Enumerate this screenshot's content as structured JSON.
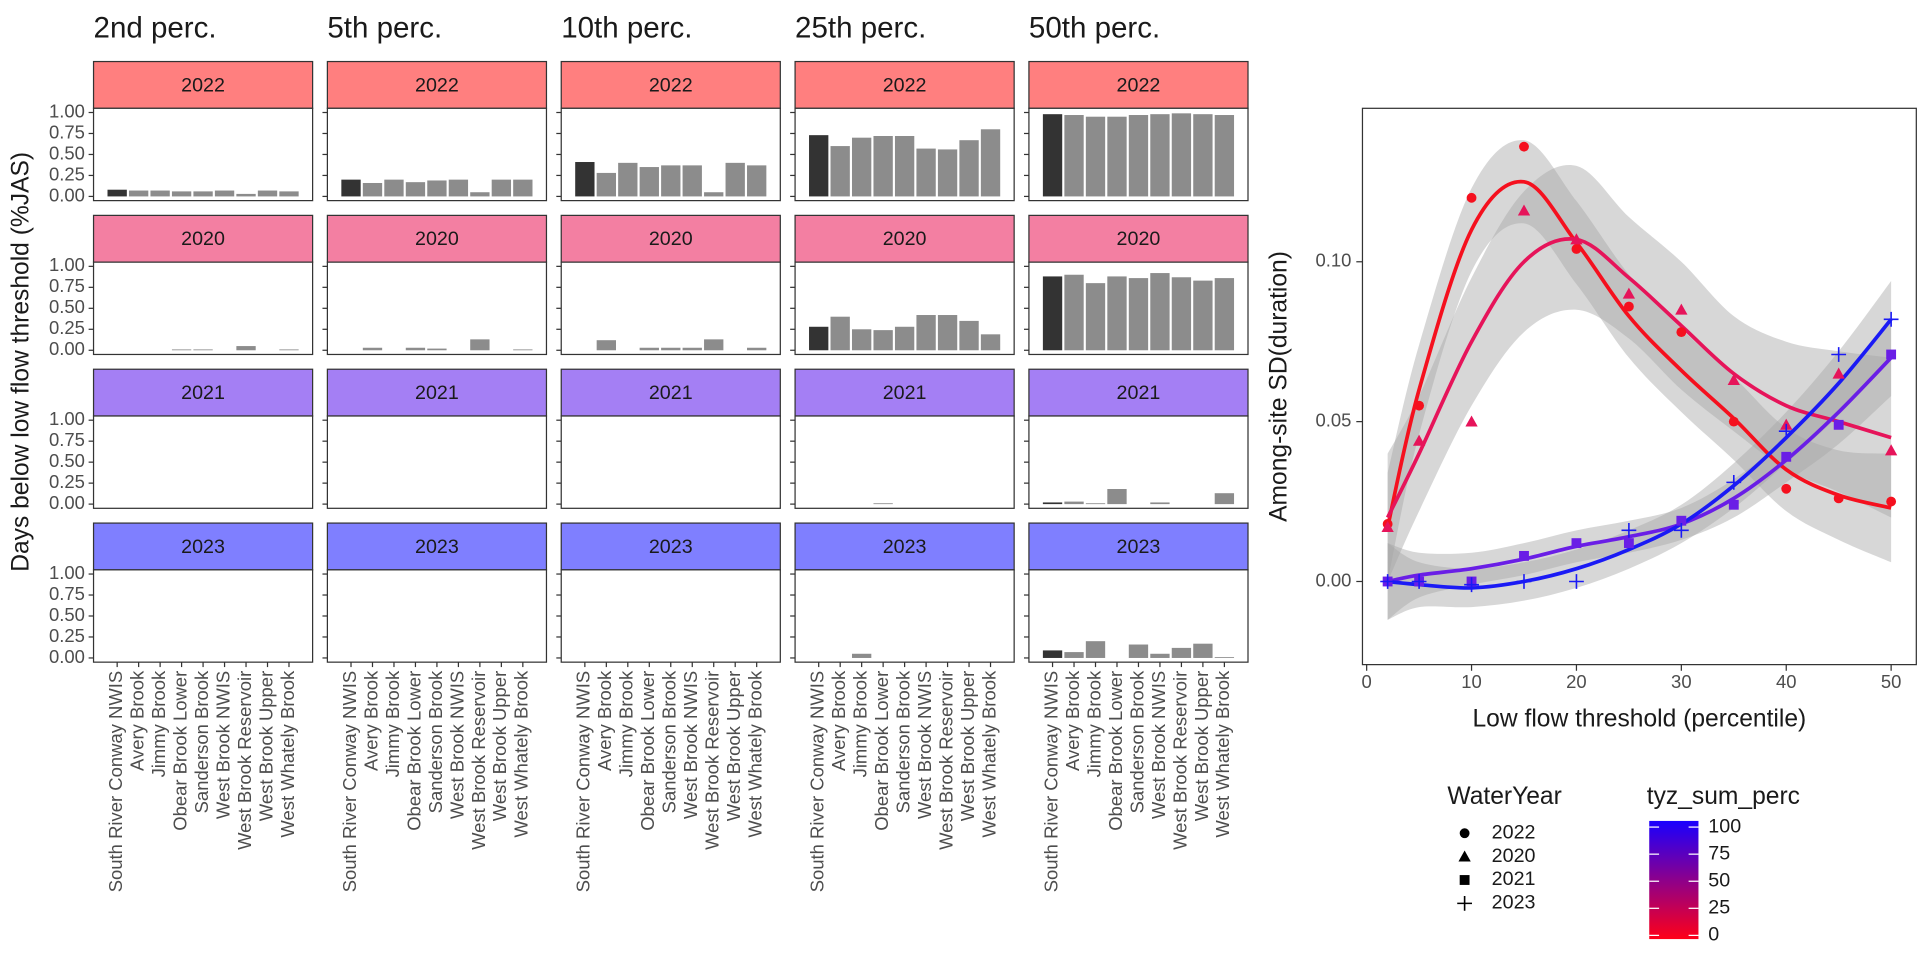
{
  "chart_data": [
    {
      "type": "bar",
      "ylabel": "Days below low flow threshold (%JAS)",
      "columns": [
        "2nd perc.",
        "5th perc.",
        "10th perc.",
        "25th perc.",
        "50th perc."
      ],
      "categories": [
        "South River Conway NWIS",
        "Avery Brook",
        "Jimmy Brook",
        "Obear Brook Lower",
        "Sanderson Brook",
        "West Brook NWIS",
        "West Brook Reservoir",
        "West Brook Upper",
        "West Whately Brook"
      ],
      "bar_colors": [
        "#333333",
        "#8c8c8c",
        "#8c8c8c",
        "#8c8c8c",
        "#8c8c8c",
        "#8c8c8c",
        "#8c8c8c",
        "#8c8c8c",
        "#8c8c8c"
      ],
      "ylim": [
        -0.05,
        1.05
      ],
      "yticks": [
        {
          "value": 0,
          "label": "0.00"
        },
        {
          "value": 0.25,
          "label": "0.25"
        },
        {
          "value": 0.5,
          "label": "0.50"
        },
        {
          "value": 0.75,
          "label": "0.75"
        },
        {
          "value": 1,
          "label": "1.00"
        }
      ],
      "grid": false,
      "rows": [
        {
          "name": "2022",
          "color": "#ff7f7f",
          "panels": [
            [
              0.08,
              0.07,
              0.07,
              0.06,
              0.06,
              0.07,
              0.03,
              0.07,
              0.06
            ],
            [
              0.2,
              0.16,
              0.2,
              0.17,
              0.19,
              0.2,
              0.05,
              0.2,
              0.2
            ],
            [
              0.41,
              0.28,
              0.4,
              0.35,
              0.37,
              0.37,
              0.05,
              0.4,
              0.37
            ],
            [
              0.73,
              0.6,
              0.7,
              0.72,
              0.72,
              0.57,
              0.56,
              0.67,
              0.8
            ],
            [
              0.98,
              0.97,
              0.95,
              0.95,
              0.97,
              0.98,
              0.99,
              0.98,
              0.97
            ]
          ]
        },
        {
          "name": "2020",
          "color": "#f37fa2",
          "panels": [
            [
              0,
              0,
              0,
              0.01,
              0.01,
              0,
              0.05,
              0,
              0.01
            ],
            [
              0,
              0.03,
              0,
              0.03,
              0.02,
              0,
              0.13,
              0,
              0.01
            ],
            [
              0,
              0.12,
              0,
              0.03,
              0.03,
              0.03,
              0.13,
              0,
              0.03
            ],
            [
              0.28,
              0.4,
              0.25,
              0.24,
              0.28,
              0.42,
              0.42,
              0.35,
              0.19
            ],
            [
              0.88,
              0.9,
              0.8,
              0.88,
              0.86,
              0.92,
              0.87,
              0.83,
              0.86
            ]
          ]
        },
        {
          "name": "2021",
          "color": "#a47ff4",
          "panels": [
            [
              0,
              0,
              0,
              0,
              0,
              0,
              0,
              0,
              0
            ],
            [
              0,
              0,
              0,
              0,
              0,
              0,
              0,
              0,
              0
            ],
            [
              0,
              0,
              0,
              0,
              0,
              0,
              0,
              0,
              0
            ],
            [
              0,
              0,
              0,
              0.01,
              0,
              0,
              0,
              0,
              0
            ],
            [
              0.02,
              0.03,
              0.01,
              0.18,
              0,
              0.02,
              0,
              0,
              0.13
            ]
          ]
        },
        {
          "name": "2023",
          "color": "#7f7fff",
          "panels": [
            [
              0,
              0,
              0,
              0,
              0,
              0,
              0,
              0,
              0
            ],
            [
              0,
              0,
              0,
              0,
              0,
              0,
              0,
              0,
              0
            ],
            [
              0,
              0,
              0,
              0,
              0,
              0,
              0,
              0,
              0
            ],
            [
              0,
              0,
              0.05,
              0,
              0,
              0,
              0,
              0,
              0
            ],
            [
              0.09,
              0.07,
              0.2,
              0,
              0.16,
              0.05,
              0.12,
              0.17,
              0.01
            ]
          ]
        }
      ]
    },
    {
      "type": "scatter",
      "xlabel": "Low flow threshold (percentile)",
      "ylabel": "Among-site SD(duration)",
      "xlim": [
        -0.4,
        52.4
      ],
      "ylim": [
        -0.026,
        0.148
      ],
      "xticks": [
        0,
        10,
        20,
        30,
        40,
        50
      ],
      "yticks": [
        {
          "value": 0,
          "label": "0.00"
        },
        {
          "value": 0.05,
          "label": "0.05"
        },
        {
          "value": 0.1,
          "label": "0.10"
        }
      ],
      "grid": false,
      "x": [
        2,
        5,
        10,
        15,
        20,
        25,
        30,
        35,
        40,
        45,
        50
      ],
      "legend_title": "WaterYear",
      "band_color": "#a6a6a6",
      "series": [
        {
          "name": "2022",
          "shape": "circle",
          "color": "#f5101e",
          "values": [
            0.018,
            0.055,
            0.12,
            0.136,
            0.104,
            0.086,
            0.078,
            0.05,
            0.029,
            0.026,
            0.025
          ],
          "fit": [
            0.017,
            0.06,
            0.11,
            0.125,
            0.106,
            0.083,
            0.066,
            0.051,
            0.035,
            0.027,
            0.023
          ],
          "fit_lower": [
            0.0,
            0.046,
            0.097,
            0.112,
            0.093,
            0.07,
            0.053,
            0.038,
            0.022,
            0.013,
            0.006
          ],
          "fit_upper": [
            0.034,
            0.074,
            0.123,
            0.138,
            0.119,
            0.096,
            0.079,
            0.064,
            0.048,
            0.041,
            0.04
          ]
        },
        {
          "name": "2020",
          "shape": "triangle",
          "color": "#e6145a",
          "values": [
            0.017,
            0.044,
            0.05,
            0.116,
            0.107,
            0.09,
            0.085,
            0.063,
            0.049,
            0.065,
            0.041
          ],
          "fit": [
            0.02,
            0.04,
            0.075,
            0.1,
            0.107,
            0.095,
            0.08,
            0.065,
            0.055,
            0.05,
            0.045
          ],
          "fit_lower": [
            0.0,
            0.022,
            0.055,
            0.078,
            0.085,
            0.076,
            0.06,
            0.047,
            0.035,
            0.028,
            0.02
          ],
          "fit_upper": [
            0.04,
            0.058,
            0.095,
            0.122,
            0.13,
            0.114,
            0.1,
            0.083,
            0.075,
            0.072,
            0.07
          ]
        },
        {
          "name": "2021",
          "shape": "square",
          "color": "#6a1ee6",
          "values": [
            0,
            0,
            0,
            0.008,
            0.012,
            0.012,
            0.019,
            0.024,
            0.039,
            0.049,
            0.071
          ],
          "fit": [
            0,
            0.002,
            0.004,
            0.007,
            0.011,
            0.014,
            0.018,
            0.026,
            0.038,
            0.053,
            0.07
          ],
          "fit_lower": [
            -0.012,
            -0.005,
            -0.001,
            0.002,
            0.006,
            0.009,
            0.013,
            0.02,
            0.031,
            0.043,
            0.058
          ],
          "fit_upper": [
            0.012,
            0.009,
            0.009,
            0.012,
            0.016,
            0.019,
            0.023,
            0.032,
            0.045,
            0.063,
            0.082
          ]
        },
        {
          "name": "2023",
          "shape": "plus",
          "color": "#1a1af5",
          "values": [
            0,
            0,
            -0.001,
            0,
            0,
            0.016,
            0.016,
            0.031,
            0.047,
            0.071,
            0.082
          ],
          "fit": [
            0,
            -0.001,
            -0.002,
            0,
            0.004,
            0.01,
            0.018,
            0.03,
            0.045,
            0.062,
            0.082
          ],
          "fit_lower": [
            -0.012,
            -0.008,
            -0.008,
            -0.006,
            -0.002,
            0.004,
            0.012,
            0.023,
            0.037,
            0.052,
            0.07
          ],
          "fit_upper": [
            0.012,
            0.006,
            0.004,
            0.006,
            0.01,
            0.016,
            0.024,
            0.037,
            0.053,
            0.072,
            0.094
          ]
        }
      ],
      "colorbar": {
        "title": "tyz_sum_perc",
        "lim": [
          0,
          100
        ],
        "ticks": [
          0,
          25,
          50,
          75,
          100
        ],
        "low": "#ff0018",
        "high": "#1a00ff"
      }
    }
  ]
}
